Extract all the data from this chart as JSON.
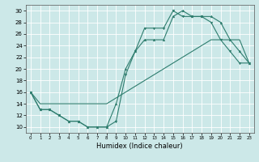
{
  "xlabel": "Humidex (Indice chaleur)",
  "bg_color": "#cce8e8",
  "grid_color": "#ffffff",
  "line_color": "#2e7d6e",
  "xlim": [
    -0.5,
    23.5
  ],
  "ylim": [
    9,
    31
  ],
  "xticks": [
    0,
    1,
    2,
    3,
    4,
    5,
    6,
    7,
    8,
    9,
    10,
    11,
    12,
    13,
    14,
    15,
    16,
    17,
    18,
    19,
    20,
    21,
    22,
    23
  ],
  "yticks": [
    10,
    12,
    14,
    16,
    18,
    20,
    22,
    24,
    26,
    28,
    30
  ],
  "line1_x": [
    0,
    1,
    2,
    3,
    4,
    5,
    6,
    7,
    8,
    9,
    10,
    11,
    12,
    13,
    14,
    15,
    16,
    17,
    18,
    19,
    20,
    21,
    22,
    23
  ],
  "line1_y": [
    16,
    13,
    13,
    12,
    11,
    11,
    10,
    10,
    10,
    11,
    19,
    23,
    27,
    27,
    27,
    30,
    29,
    29,
    29,
    28,
    25,
    23,
    21,
    21
  ],
  "line2_x": [
    0,
    1,
    2,
    3,
    4,
    5,
    6,
    7,
    8,
    9,
    10,
    11,
    12,
    13,
    14,
    15,
    16,
    17,
    18,
    19,
    20,
    21,
    22,
    23
  ],
  "line2_y": [
    16,
    13,
    13,
    12,
    11,
    11,
    10,
    10,
    10,
    14,
    20,
    23,
    25,
    25,
    25,
    29,
    30,
    29,
    29,
    29,
    28,
    25,
    23,
    21
  ],
  "line3_x": [
    0,
    1,
    2,
    3,
    4,
    5,
    6,
    7,
    8,
    9,
    10,
    11,
    12,
    13,
    14,
    15,
    16,
    17,
    18,
    19,
    20,
    21,
    22,
    23
  ],
  "line3_y": [
    16,
    14,
    14,
    14,
    14,
    14,
    14,
    14,
    14,
    15,
    16,
    17,
    18,
    19,
    20,
    21,
    22,
    23,
    24,
    25,
    25,
    25,
    25,
    21
  ]
}
